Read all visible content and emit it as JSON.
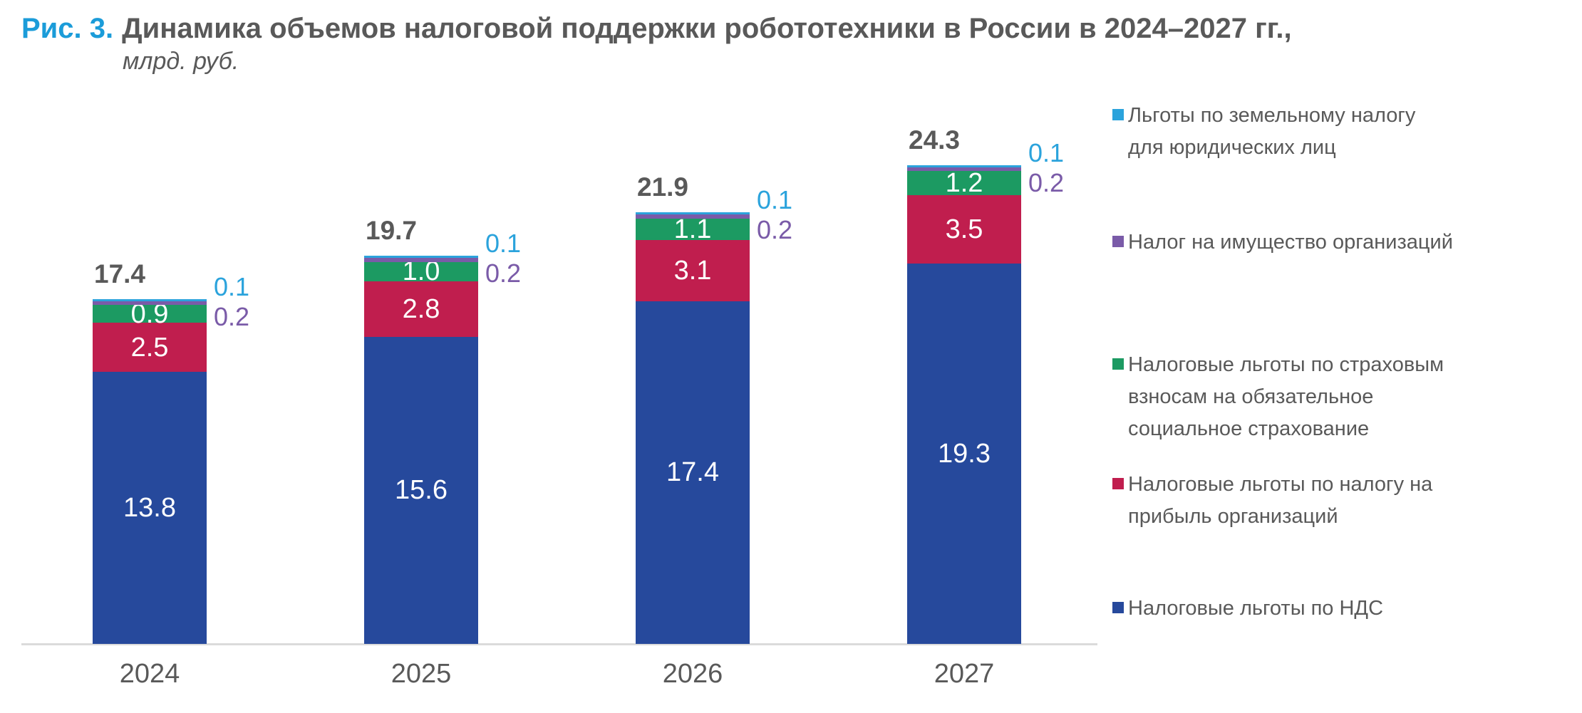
{
  "title": {
    "prefix": "Рис. 3.",
    "text": "Динамика объемов налоговой поддержки робототехники в России в 2024–2027 гг.,",
    "unit": "млрд. руб."
  },
  "colors": {
    "vat_blue": "#26499C",
    "profit_red": "#C01E4E",
    "insurance_green": "#1C9A62",
    "property_purple": "#7A5BA8",
    "land_lightblue": "#2BA3DC",
    "title_accent": "#1B9CD9",
    "text_gray": "#595959",
    "axis_gray": "#DBDBDB",
    "inside_label_white": "#FFFFFF"
  },
  "chart_data": {
    "type": "bar",
    "stacked": true,
    "title": "Динамика объемов налоговой поддержки робототехники в России в 2024–2027 гг., млрд. руб.",
    "xlabel": "",
    "ylabel": "млрд. руб.",
    "categories": [
      "2024",
      "2025",
      "2026",
      "2027"
    ],
    "totals": [
      17.4,
      19.7,
      21.9,
      24.3
    ],
    "series": [
      {
        "name": "Налоговые льготы по НДС",
        "color": "#26499C",
        "values": [
          13.8,
          15.6,
          17.4,
          19.3
        ],
        "label_position": "inside"
      },
      {
        "name": "Налоговые льготы по налогу на прибыль организаций",
        "color": "#C01E4E",
        "values": [
          2.5,
          2.8,
          3.1,
          3.5
        ],
        "label_position": "inside"
      },
      {
        "name": "Налоговые льготы по страховым взносам на обязательное социальное страхование",
        "color": "#1C9A62",
        "values": [
          0.9,
          1.0,
          1.1,
          1.2
        ],
        "label_position": "inside"
      },
      {
        "name": "Налог на имущество организаций",
        "color": "#7A5BA8",
        "values": [
          0.2,
          0.2,
          0.2,
          0.2
        ],
        "label_position": "outside"
      },
      {
        "name": "Льготы по земельному налогу для юридических лиц",
        "color": "#2BA3DC",
        "values": [
          0.1,
          0.1,
          0.1,
          0.1
        ],
        "label_position": "outside"
      }
    ],
    "ylim": [
      0,
      25
    ],
    "y_axis_visible": false,
    "grid": false,
    "legend_position": "right"
  },
  "legend": {
    "items": [
      {
        "color": "#2BA3DC",
        "label": "Льготы по земельному налогу для юридических лиц",
        "lines": [
          "Льготы по земельному налогу",
          "для юридических лиц"
        ]
      },
      {
        "color": "#7A5BA8",
        "label": "Налог на имущество организаций",
        "lines": [
          "Налог на имущество организаций"
        ]
      },
      {
        "color": "#1C9A62",
        "label": "Налоговые льготы по страховым взносам на обязательное социальное страхование",
        "lines": [
          "Налоговые льготы по страховым",
          "взносам на обязательное",
          "социальное страхование"
        ]
      },
      {
        "color": "#C01E4E",
        "label": "Налоговые льготы по налогу на прибыль организаций",
        "lines": [
          "Налоговые льготы по налогу на",
          "прибыль организаций"
        ]
      },
      {
        "color": "#26499C",
        "label": "Налоговые льготы по НДС",
        "lines": [
          "Налоговые льготы по НДС"
        ]
      }
    ]
  }
}
